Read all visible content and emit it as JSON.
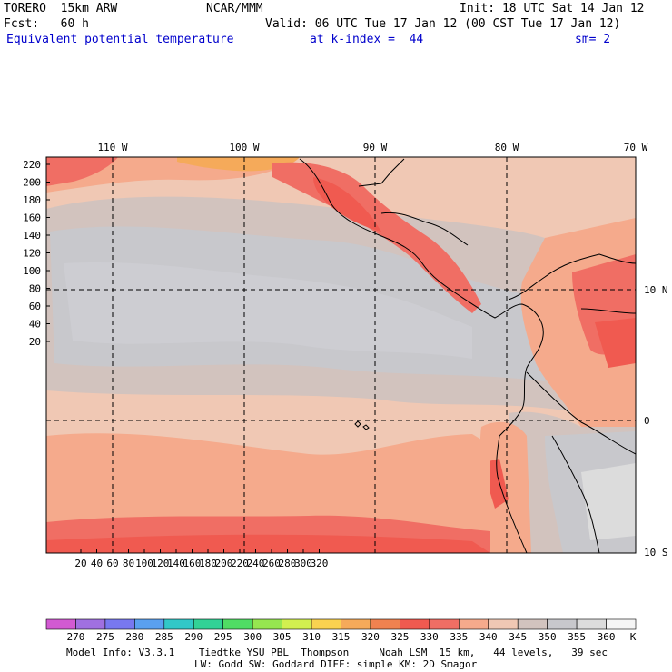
{
  "header": {
    "model": "TORERO  15km ARW",
    "org": "NCAR/MMM",
    "init": "Init: 18 UTC Sat 14 Jan 12",
    "fcst": "Fcst:   60 h",
    "valid": "Valid: 06 UTC Tue 17 Jan 12 (00 CST Tue 17 Jan 12)",
    "field": "Equivalent potential temperature",
    "level": "at k-index =  44",
    "smooth": "sm= 2"
  },
  "map": {
    "lon_labels": [
      "110 W",
      "100 W",
      "90 W",
      "80 W",
      "70 W"
    ],
    "lat_labels": [
      "10 N",
      "0",
      "10 S"
    ],
    "y_ticks": [
      "220",
      "200",
      "180",
      "160",
      "140",
      "120",
      "100",
      "80",
      "60",
      "40",
      "20"
    ],
    "x_ticks": [
      "20",
      "40",
      "60",
      "80",
      "100",
      "120",
      "140",
      "160",
      "180",
      "200",
      "220",
      "240",
      "260",
      "280",
      "300",
      "320"
    ]
  },
  "colorbar": {
    "values": [
      "270",
      "275",
      "280",
      "285",
      "290",
      "295",
      "300",
      "305",
      "310",
      "315",
      "320",
      "325",
      "330",
      "335",
      "340",
      "345",
      "350",
      "355",
      "360"
    ],
    "unit": "K",
    "colors": [
      "#d25ad2",
      "#a070e0",
      "#7878f0",
      "#5aa0f0",
      "#32c8c8",
      "#32d296",
      "#50dc64",
      "#96e650",
      "#d2f050",
      "#fad250",
      "#f5aa5a",
      "#f08250",
      "#f05a50",
      "#f06e64",
      "#f5aa8c",
      "#f0c8b4",
      "#d2c3be",
      "#c8c8cc",
      "#dcdcdc",
      "#f5f5f5"
    ]
  },
  "footer": {
    "line1": "Model Info: V3.3.1    Tiedtke YSU PBL  Thompson     Noah LSM  15 km,   44 levels,   39 sec",
    "line2": "LW: Godd SW: Goddard DIFF: simple KM: 2D Smagor"
  }
}
